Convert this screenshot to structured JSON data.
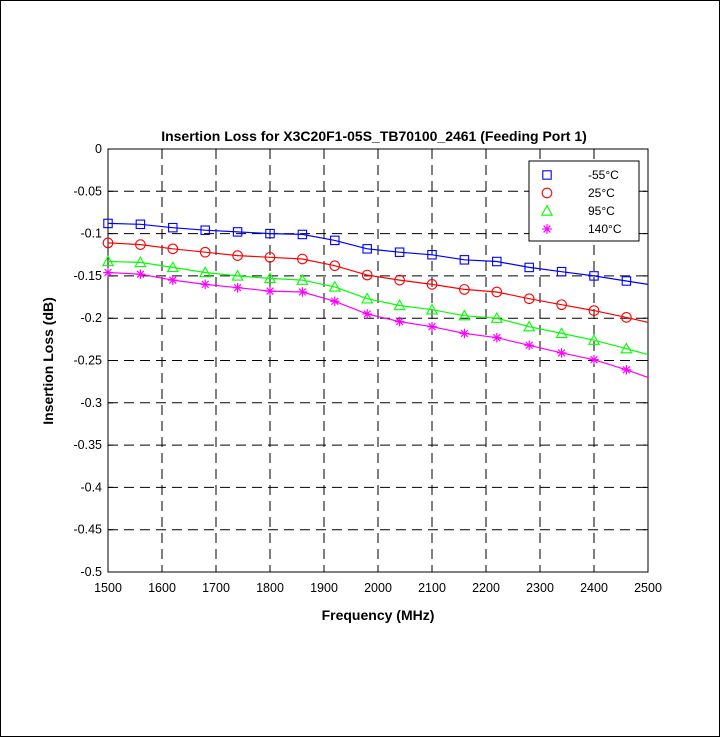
{
  "chart_data": {
    "type": "line",
    "title": "Insertion Loss for X3C20F1-05S_TB70100_2461 (Feeding Port 1)",
    "xlabel": "Frequency (MHz)",
    "ylabel": "Insertion Loss (dB)",
    "xlim": [
      1500,
      2500
    ],
    "ylim": [
      -0.5,
      0
    ],
    "xticks": [
      1500,
      1600,
      1700,
      1800,
      1900,
      2000,
      2100,
      2200,
      2300,
      2400,
      2500
    ],
    "yticks": [
      0,
      -0.05,
      -0.1,
      -0.15,
      -0.2,
      -0.25,
      -0.3,
      -0.35,
      -0.4,
      -0.45,
      -0.5
    ],
    "xtick_labels": [
      "1500",
      "1600",
      "1700",
      "1800",
      "1900",
      "2000",
      "2100",
      "2200",
      "2300",
      "2400",
      "2500"
    ],
    "ytick_labels": [
      "0",
      "-0.05",
      "-0.1",
      "-0.15",
      "-0.2",
      "-0.25",
      "-0.3",
      "-0.35",
      "-0.4",
      "-0.45",
      "-0.5"
    ],
    "grid": true,
    "grid_style": "dashed",
    "legend_position": "top-right",
    "x": [
      1500,
      1560,
      1620,
      1680,
      1740,
      1800,
      1860,
      1920,
      1980,
      2040,
      2100,
      2160,
      2220,
      2280,
      2340,
      2400,
      2460
    ],
    "line_x": [
      1500,
      1560,
      1620,
      1680,
      1740,
      1800,
      1860,
      1920,
      1980,
      2040,
      2100,
      2160,
      2220,
      2280,
      2340,
      2400,
      2460,
      2500
    ],
    "series": [
      {
        "name": "-55°C",
        "color": "#0000ff",
        "marker": "square",
        "values": [
          -0.088,
          -0.089,
          -0.093,
          -0.096,
          -0.098,
          -0.1,
          -0.101,
          -0.108,
          -0.118,
          -0.122,
          -0.125,
          -0.131,
          -0.133,
          -0.14,
          -0.145,
          -0.15,
          -0.156
        ],
        "line_values": [
          -0.088,
          -0.089,
          -0.093,
          -0.096,
          -0.098,
          -0.1,
          -0.101,
          -0.108,
          -0.118,
          -0.122,
          -0.125,
          -0.131,
          -0.133,
          -0.14,
          -0.145,
          -0.15,
          -0.156,
          -0.16
        ]
      },
      {
        "name": "25°C",
        "color": "#ff0000",
        "marker": "circle",
        "values": [
          -0.111,
          -0.113,
          -0.118,
          -0.122,
          -0.126,
          -0.128,
          -0.13,
          -0.138,
          -0.149,
          -0.155,
          -0.16,
          -0.166,
          -0.169,
          -0.177,
          -0.184,
          -0.191,
          -0.199
        ],
        "line_values": [
          -0.111,
          -0.113,
          -0.118,
          -0.122,
          -0.126,
          -0.128,
          -0.13,
          -0.138,
          -0.149,
          -0.155,
          -0.16,
          -0.166,
          -0.169,
          -0.177,
          -0.184,
          -0.191,
          -0.199,
          -0.205
        ]
      },
      {
        "name": "95°C",
        "color": "#00ff00",
        "marker": "triangle",
        "values": [
          -0.133,
          -0.134,
          -0.14,
          -0.146,
          -0.15,
          -0.153,
          -0.155,
          -0.163,
          -0.177,
          -0.185,
          -0.19,
          -0.197,
          -0.2,
          -0.21,
          -0.218,
          -0.226,
          -0.236
        ],
        "line_values": [
          -0.133,
          -0.134,
          -0.14,
          -0.146,
          -0.15,
          -0.153,
          -0.155,
          -0.163,
          -0.177,
          -0.185,
          -0.19,
          -0.197,
          -0.2,
          -0.21,
          -0.218,
          -0.226,
          -0.236,
          -0.243
        ]
      },
      {
        "name": "140°C",
        "color": "#ff00ff",
        "marker": "asterisk",
        "values": [
          -0.146,
          -0.148,
          -0.155,
          -0.16,
          -0.164,
          -0.168,
          -0.169,
          -0.18,
          -0.195,
          -0.204,
          -0.21,
          -0.218,
          -0.223,
          -0.232,
          -0.241,
          -0.249,
          -0.261
        ],
        "line_values": [
          -0.146,
          -0.148,
          -0.155,
          -0.16,
          -0.164,
          -0.168,
          -0.169,
          -0.18,
          -0.195,
          -0.204,
          -0.21,
          -0.218,
          -0.223,
          -0.232,
          -0.241,
          -0.249,
          -0.261,
          -0.27
        ]
      }
    ]
  }
}
